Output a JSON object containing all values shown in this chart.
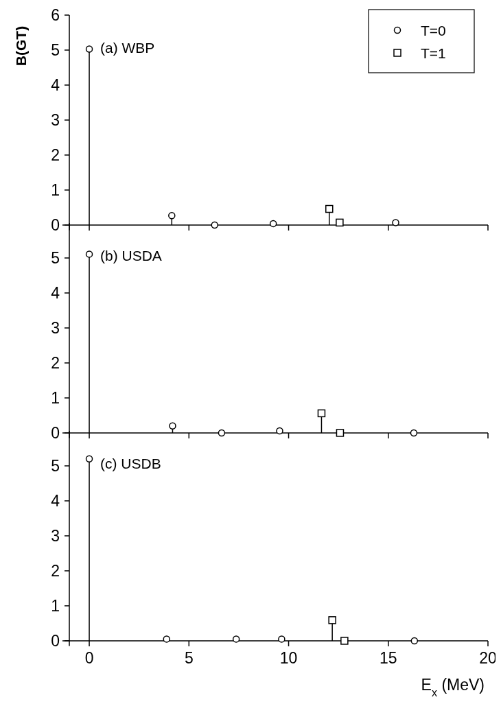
{
  "chart_data": [
    {
      "type": "lollipop",
      "title": "(a) WBP",
      "ylabel": "B(GT)",
      "xlim": [
        -1,
        20
      ],
      "xticks": [
        0,
        5,
        10,
        15,
        20
      ],
      "ylim": [
        -0.15,
        6
      ],
      "yticks": [
        0,
        1,
        2,
        3,
        4,
        5,
        6
      ],
      "tick_labels": "y",
      "legend": "top right",
      "series": [
        {
          "name": "T=0",
          "color": "#000000",
          "marker": "circle",
          "x": [
            0,
            4.14,
            6.29,
            9.23,
            15.37
          ],
          "values": [
            5.03,
            0.27,
            0,
            0.04,
            0.07
          ]
        },
        {
          "name": "T=1",
          "color": "#000000",
          "marker": "square",
          "x": [
            12.04,
            12.56
          ],
          "values": [
            0.46,
            0.07
          ]
        }
      ]
    },
    {
      "type": "lollipop",
      "title": "(b) USDA",
      "xlim": [
        -1,
        20
      ],
      "xticks": [
        0,
        5,
        10,
        15,
        20
      ],
      "ylim": [
        -0.15,
        6
      ],
      "yticks": [
        0,
        1,
        2,
        3,
        4,
        5
      ],
      "tick_labels": "y",
      "series": [
        {
          "color": "#000000",
          "marker": "circle",
          "x": [
            0,
            4.18,
            6.64,
            9.55,
            16.28
          ],
          "values": [
            5.11,
            0.2,
            0,
            0.06,
            0
          ]
        },
        {
          "color": "#000000",
          "marker": "square",
          "x": [
            11.65,
            12.58
          ],
          "values": [
            0.56,
            0
          ]
        }
      ]
    },
    {
      "type": "lollipop",
      "title": "(c) USDB",
      "xlabel": "E$_{x}$ (MeV)",
      "xlim": [
        -1,
        20
      ],
      "xticks": [
        0,
        5,
        10,
        15,
        20
      ],
      "ylim": [
        -0.15,
        6
      ],
      "yticks": [
        0,
        1,
        2,
        3,
        4,
        5
      ],
      "series": [
        {
          "color": "#000000",
          "marker": "circle",
          "x": [
            0,
            3.88,
            7.37,
            9.65,
            16.31
          ],
          "values": [
            5.2,
            0.05,
            0.05,
            0.05,
            0
          ]
        },
        {
          "color": "#000000",
          "marker": "square",
          "x": [
            12.19,
            12.8
          ],
          "values": [
            0.59,
            0
          ]
        }
      ]
    }
  ]
}
